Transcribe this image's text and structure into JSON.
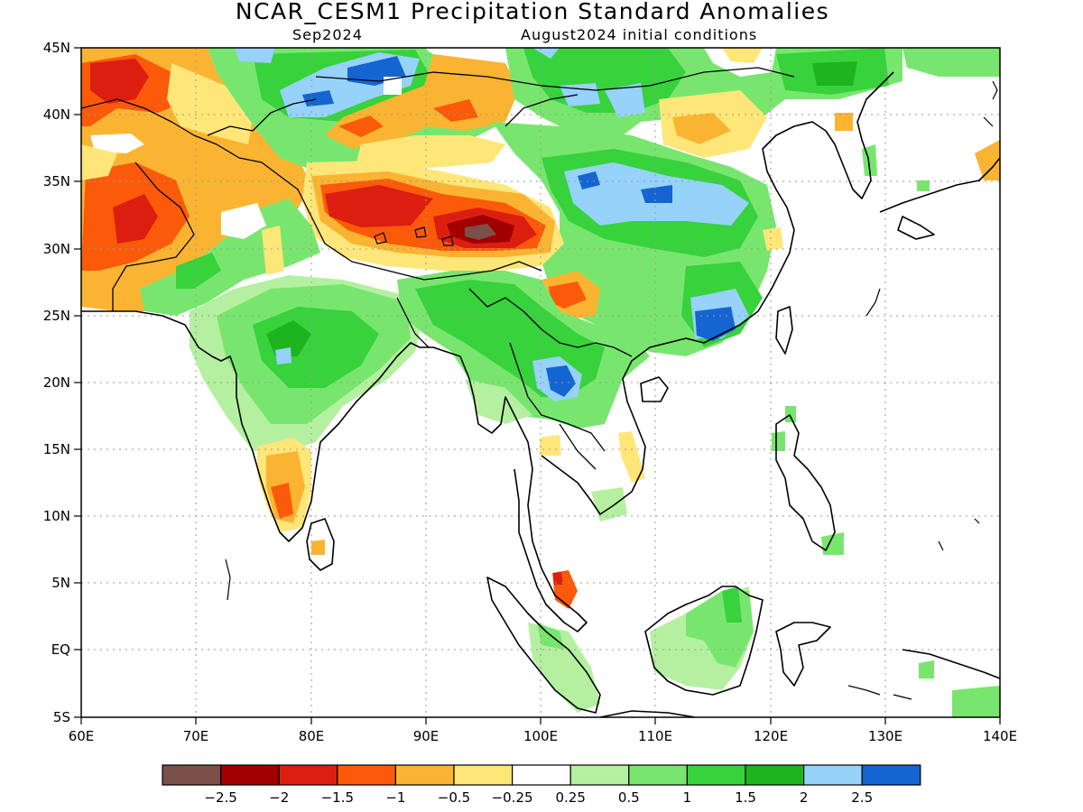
{
  "title": "NCAR_CESM1 Precipitation Standard Anomalies",
  "subtitle_left": "Sep2024",
  "subtitle_right": "August2024 initial conditions",
  "lon_labels": [
    "60E",
    "70E",
    "80E",
    "90E",
    "100E",
    "110E",
    "120E",
    "130E",
    "140E"
  ],
  "lat_labels": [
    "45N",
    "40N",
    "35N",
    "30N",
    "25N",
    "20N",
    "15N",
    "10N",
    "5N",
    "EQ",
    "5S"
  ],
  "colorbar": {
    "colors": [
      "#7a5048",
      "#a00000",
      "#dc1e10",
      "#fa5a0a",
      "#fab432",
      "#ffe678",
      "#ffffff",
      "#b4f0a0",
      "#78e66e",
      "#37d23c",
      "#1eb41e",
      "#96d2fa",
      "#1464d2"
    ],
    "labels": [
      "-2.5",
      "-2",
      "-1.5",
      "-1",
      "-0.5",
      "-0.25",
      "0.25",
      "0.5",
      "1",
      "1.5",
      "2",
      "2.5"
    ]
  },
  "colors": {
    "brown": "#7a5048",
    "darkred": "#a00000",
    "red": "#dc1e10",
    "orange": "#fa5a0a",
    "lightorange": "#fab432",
    "yellow": "#ffe678",
    "palegreen": "#b4f0a0",
    "lightgreen": "#78e66e",
    "green": "#37d23c",
    "darkgreen": "#1eb41e",
    "lightblue": "#96d2fa",
    "blue": "#1464d2"
  }
}
